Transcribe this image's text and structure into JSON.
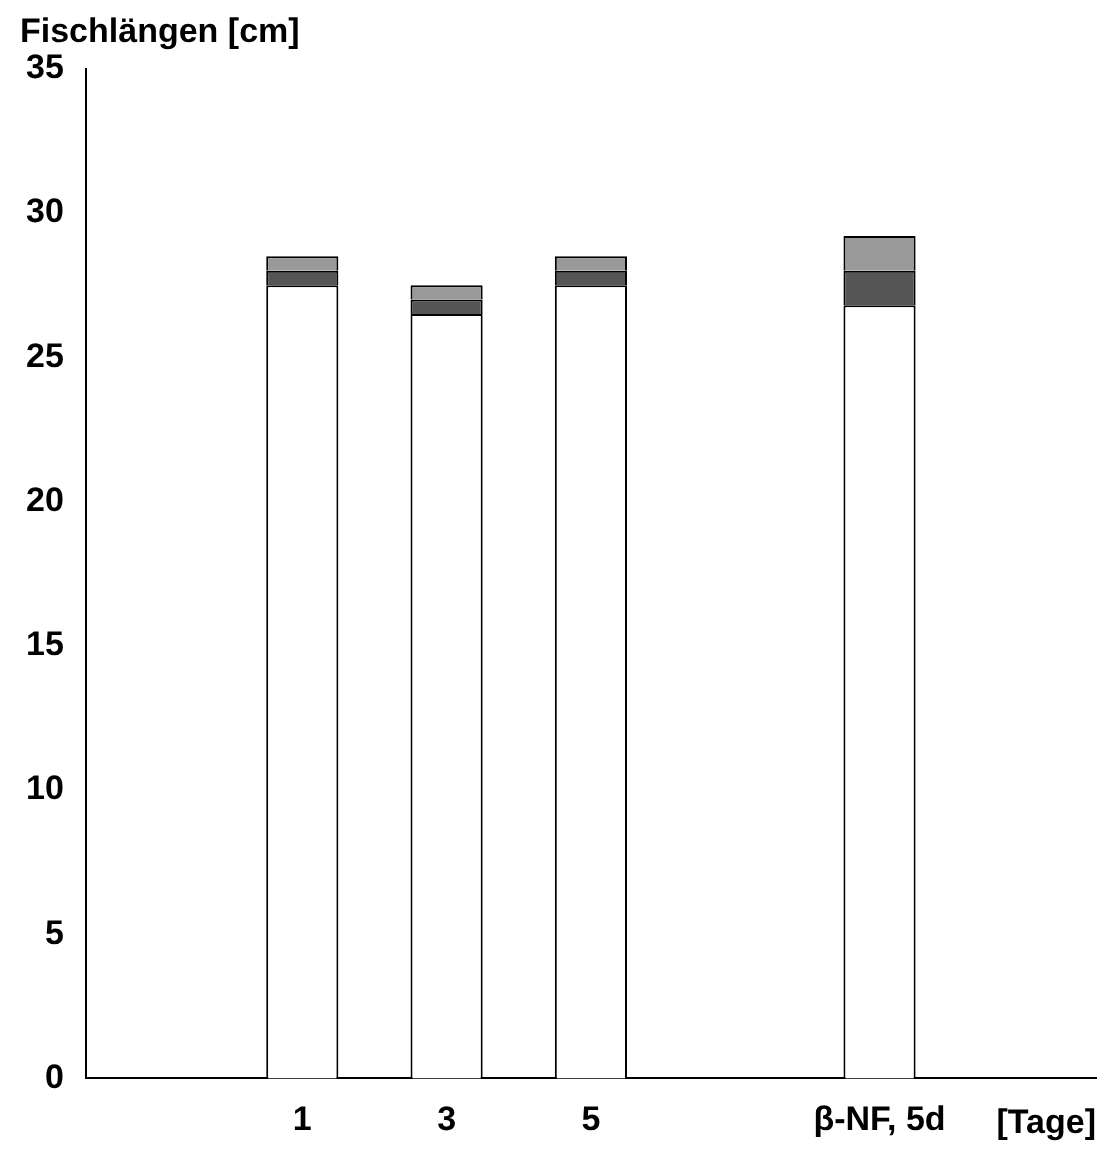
{
  "chart_data": {
    "type": "bar",
    "ylabel": "Fischlängen [cm]",
    "xlabel": "[Tage]",
    "stacked": true,
    "categories": [
      null,
      "1",
      "3",
      "5",
      null,
      "β-NF, 5d",
      null
    ],
    "series": [
      {
        "color": "#ffffff",
        "values": [
          null,
          27.5,
          26.5,
          27.5,
          null,
          26.8,
          null
        ]
      },
      {
        "color": "#555555",
        "values": [
          null,
          0.5,
          0.5,
          0.5,
          null,
          1.2,
          null
        ]
      },
      {
        "color": "#999999",
        "values": [
          null,
          0.5,
          0.5,
          0.5,
          null,
          1.2,
          null
        ]
      }
    ],
    "ylim": [
      0,
      35
    ],
    "yticks": [
      0,
      5,
      10,
      15,
      20,
      25,
      30,
      35
    ],
    "grid": false,
    "legend": false
  }
}
